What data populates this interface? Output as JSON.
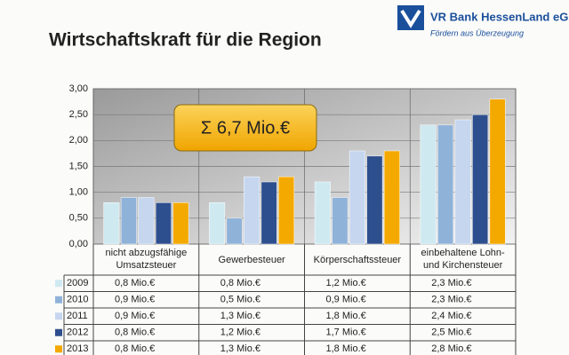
{
  "chart_data": {
    "type": "bar",
    "title": "Wirtschaftskraft für die Region",
    "logo": {
      "name": "VR Bank HessenLand eG",
      "slogan": "Fördern aus Überzeugung"
    },
    "annotation": "Σ 6,7 Mio.€",
    "categories": [
      "nicht abzugsfähige Umsatzsteuer",
      "Gewerbesteuer",
      "Körperschaftssteuer",
      "einbehaltene Lohn- und Kirchensteuer"
    ],
    "series": [
      {
        "name": "2009",
        "color": "#cfe9f1",
        "values": [
          0.8,
          0.8,
          1.2,
          2.3
        ],
        "value_labels": [
          "0,8 Mio.€",
          "0,8 Mio.€",
          "1,2 Mio.€",
          "2,3 Mio.€"
        ]
      },
      {
        "name": "2010",
        "color": "#8fb2d9",
        "values": [
          0.9,
          0.5,
          0.9,
          2.3
        ],
        "value_labels": [
          "0,9 Mio.€",
          "0,5 Mio.€",
          "0,9 Mio.€",
          "2,3 Mio.€"
        ]
      },
      {
        "name": "2011",
        "color": "#c6d6ef",
        "values": [
          0.9,
          1.3,
          1.8,
          2.4
        ],
        "value_labels": [
          "0,9 Mio.€",
          "1,3 Mio.€",
          "1,8 Mio.€",
          "2,4 Mio.€"
        ]
      },
      {
        "name": "2012",
        "color": "#2e4f8e",
        "values": [
          0.8,
          1.2,
          1.7,
          2.5
        ],
        "value_labels": [
          "0,8 Mio.€",
          "1,2 Mio.€",
          "1,7 Mio.€",
          "2,5 Mio.€"
        ]
      },
      {
        "name": "2013",
        "color": "#f4a900",
        "values": [
          0.8,
          1.3,
          1.8,
          2.8
        ],
        "value_labels": [
          "0,8 Mio.€",
          "1,3 Mio.€",
          "1,8 Mio.€",
          "2,8 Mio.€"
        ]
      }
    ],
    "ylim": [
      0,
      3
    ],
    "yticks": [
      {
        "value": 0,
        "label": "0,00"
      },
      {
        "value": 0.5,
        "label": "0,50"
      },
      {
        "value": 1,
        "label": "1,00"
      },
      {
        "value": 1.5,
        "label": "1,50"
      },
      {
        "value": 2,
        "label": "2,00"
      },
      {
        "value": 2.5,
        "label": "2,50"
      },
      {
        "value": 3,
        "label": "3,00"
      }
    ],
    "grid": true
  }
}
